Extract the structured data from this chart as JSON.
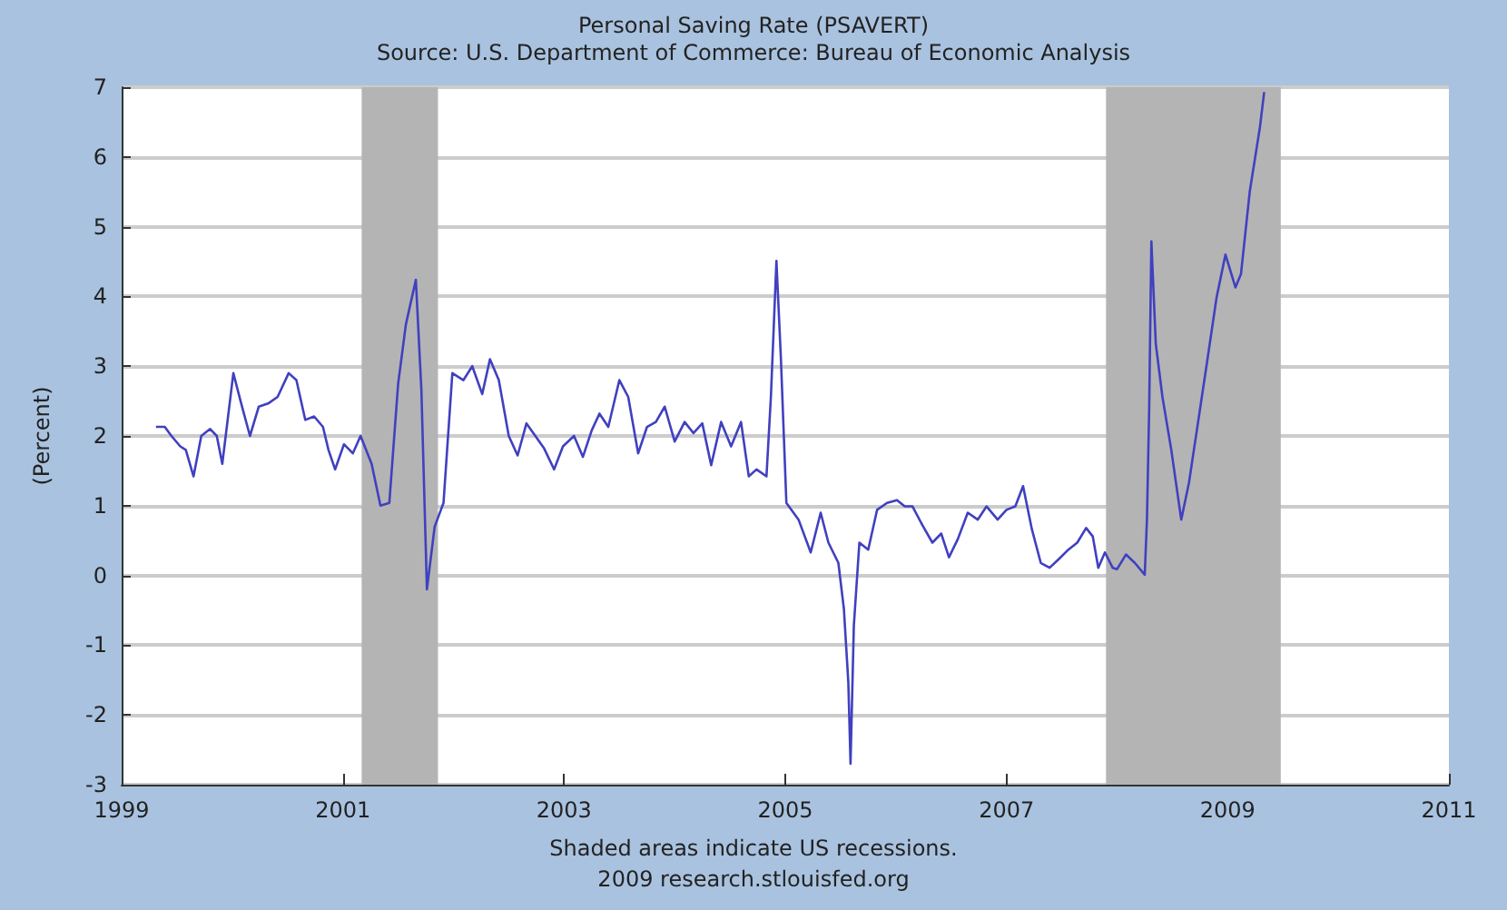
{
  "chart_data": {
    "type": "line",
    "title": "Personal Saving Rate (PSAVERT)",
    "subtitle": "Source: U.S. Department of Commerce: Bureau of Economic Analysis",
    "ylabel": "(Percent)",
    "annotations": [
      "Shaded areas indicate US recessions.",
      "2009 research.stlouisfed.org"
    ],
    "xlim": [
      1999,
      2011
    ],
    "xticks": [
      1999,
      2001,
      2003,
      2005,
      2007,
      2009,
      2011
    ],
    "ylim": [
      -3,
      7
    ],
    "yticks": [
      -3,
      -2,
      -1,
      0,
      1,
      2,
      3,
      4,
      5,
      6,
      7
    ],
    "grid": "y",
    "bands": [
      {
        "axis": "x",
        "from": 2001.17,
        "to": 2001.86,
        "color": "#b4b4b4"
      },
      {
        "axis": "x",
        "from": 2007.9,
        "to": 2009.48,
        "color": "#b4b4b4"
      }
    ],
    "series": [
      {
        "color": "#4040c0",
        "x": [
          1999.31,
          1999.39,
          1999.45,
          1999.53,
          1999.58,
          1999.65,
          1999.72,
          1999.8,
          1999.86,
          1999.91,
          2000.01,
          2000.08,
          2000.16,
          2000.24,
          2000.33,
          2000.41,
          2000.51,
          2000.58,
          2000.66,
          2000.74,
          2000.82,
          2000.87,
          2000.93,
          2001.01,
          2001.09,
          2001.16,
          2001.26,
          2001.34,
          2001.42,
          2001.5,
          2001.57,
          2001.66,
          2001.71,
          2001.76,
          2001.83,
          2001.91,
          2001.99,
          2002.09,
          2002.17,
          2002.26,
          2002.33,
          2002.41,
          2002.5,
          2002.58,
          2002.66,
          2002.74,
          2002.82,
          2002.91,
          2002.99,
          2003.09,
          2003.17,
          2003.25,
          2003.32,
          2003.4,
          2003.5,
          2003.58,
          2003.67,
          2003.75,
          2003.83,
          2003.91,
          2004,
          2004.09,
          2004.17,
          2004.25,
          2004.33,
          2004.42,
          2004.51,
          2004.6,
          2004.67,
          2004.74,
          2004.83,
          2004.87,
          2004.92,
          2004.96,
          2005.01,
          2005.12,
          2005.23,
          2005.32,
          2005.39,
          2005.48,
          2005.53,
          2005.57,
          2005.59,
          2005.62,
          2005.67,
          2005.75,
          2005.83,
          2005.92,
          2006.01,
          2006.08,
          2006.15,
          2006.23,
          2006.33,
          2006.41,
          2006.48,
          2006.56,
          2006.65,
          2006.74,
          2006.82,
          2006.92,
          2007,
          2007.08,
          2007.15,
          2007.23,
          2007.31,
          2007.39,
          2007.47,
          2007.56,
          2007.64,
          2007.72,
          2007.78,
          2007.83,
          2007.89,
          2007.96,
          2008,
          2008.08,
          2008.16,
          2008.25,
          2008.27,
          2008.29,
          2008.31,
          2008.35,
          2008.41,
          2008.49,
          2008.58,
          2008.65,
          2008.74,
          2008.82,
          2008.9,
          2008.98,
          2009.07,
          2009.12,
          2009.2,
          2009.29,
          2009.33
        ],
        "values": [
          2.13,
          2.13,
          2.0,
          1.85,
          1.8,
          1.42,
          2.0,
          2.1,
          2.0,
          1.6,
          2.9,
          2.47,
          2.0,
          2.42,
          2.47,
          2.56,
          2.9,
          2.8,
          2.23,
          2.28,
          2.13,
          1.8,
          1.52,
          1.88,
          1.75,
          2.0,
          1.6,
          1.0,
          1.04,
          2.75,
          3.6,
          4.24,
          2.66,
          -0.2,
          0.7,
          1.04,
          2.9,
          2.8,
          3.0,
          2.6,
          3.1,
          2.8,
          2.0,
          1.72,
          2.18,
          2.0,
          1.82,
          1.52,
          1.85,
          2.0,
          1.7,
          2.08,
          2.32,
          2.13,
          2.8,
          2.56,
          1.75,
          2.13,
          2.2,
          2.42,
          1.92,
          2.2,
          2.04,
          2.18,
          1.58,
          2.2,
          1.85,
          2.2,
          1.42,
          1.52,
          1.42,
          2.56,
          4.51,
          3.13,
          1.04,
          0.8,
          0.33,
          0.9,
          0.47,
          0.18,
          -0.48,
          -1.53,
          -2.7,
          -0.72,
          0.47,
          0.37,
          0.94,
          1.04,
          1.08,
          0.99,
          0.99,
          0.75,
          0.47,
          0.6,
          0.26,
          0.52,
          0.9,
          0.8,
          0.99,
          0.8,
          0.94,
          0.99,
          1.28,
          0.66,
          0.18,
          0.11,
          0.23,
          0.37,
          0.47,
          0.68,
          0.56,
          0.11,
          0.33,
          0.11,
          0.09,
          0.3,
          0.18,
          0.01,
          0.8,
          2.37,
          4.79,
          3.32,
          2.56,
          1.8,
          0.8,
          1.33,
          2.28,
          3.13,
          3.99,
          4.6,
          4.13,
          4.32,
          5.51,
          6.41,
          6.93
        ]
      }
    ]
  }
}
